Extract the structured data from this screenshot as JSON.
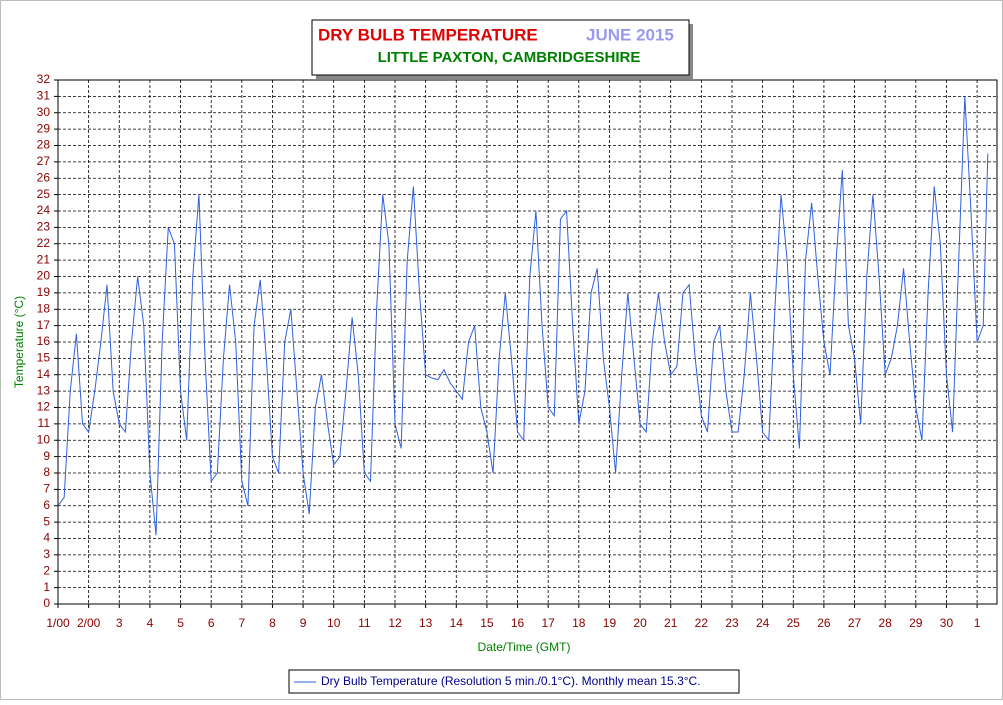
{
  "chart_data": {
    "type": "line",
    "title": "DRY BULB TEMPERATURE",
    "title_date": "JUNE 2015",
    "subtitle": "LITTLE PAXTON, CAMBRIDGESHIRE",
    "title_color": "#e00000",
    "title_date_color": "#9999ee",
    "subtitle_color": "#008000",
    "x_label": "Date/Time (GMT)",
    "y_label": "Temperature (°C)",
    "xlim": [
      0,
      30.65
    ],
    "ylim": [
      0,
      32
    ],
    "xticks": [
      {
        "value": 0,
        "label": "1/00"
      },
      {
        "value": 1,
        "label": "2/00"
      },
      {
        "value": 2,
        "label": "3"
      },
      {
        "value": 3,
        "label": "4"
      },
      {
        "value": 4,
        "label": "5"
      },
      {
        "value": 5,
        "label": "6"
      },
      {
        "value": 6,
        "label": "7"
      },
      {
        "value": 7,
        "label": "8"
      },
      {
        "value": 8,
        "label": "9"
      },
      {
        "value": 9,
        "label": "10"
      },
      {
        "value": 10,
        "label": "11"
      },
      {
        "value": 11,
        "label": "12"
      },
      {
        "value": 12,
        "label": "13"
      },
      {
        "value": 13,
        "label": "14"
      },
      {
        "value": 14,
        "label": "15"
      },
      {
        "value": 15,
        "label": "16"
      },
      {
        "value": 16,
        "label": "17"
      },
      {
        "value": 17,
        "label": "18"
      },
      {
        "value": 18,
        "label": "19"
      },
      {
        "value": 19,
        "label": "20"
      },
      {
        "value": 20,
        "label": "21"
      },
      {
        "value": 21,
        "label": "22"
      },
      {
        "value": 22,
        "label": "23"
      },
      {
        "value": 23,
        "label": "24"
      },
      {
        "value": 24,
        "label": "25"
      },
      {
        "value": 25,
        "label": "26"
      },
      {
        "value": 26,
        "label": "27"
      },
      {
        "value": 27,
        "label": "28"
      },
      {
        "value": 28,
        "label": "29"
      },
      {
        "value": 29,
        "label": "30"
      },
      {
        "value": 30,
        "label": "1"
      }
    ],
    "yticks": [
      0,
      1,
      2,
      3,
      4,
      5,
      6,
      7,
      8,
      9,
      10,
      11,
      12,
      13,
      14,
      15,
      16,
      17,
      18,
      19,
      20,
      21,
      22,
      23,
      24,
      25,
      26,
      27,
      28,
      29,
      30,
      31,
      32
    ],
    "grid": true,
    "x": [
      0,
      0.2,
      0.4,
      0.6,
      0.8,
      1,
      1.2,
      1.4,
      1.6,
      1.8,
      2,
      2.2,
      2.4,
      2.6,
      2.8,
      3,
      3.2,
      3.4,
      3.6,
      3.8,
      4,
      4.2,
      4.4,
      4.6,
      4.8,
      5,
      5.2,
      5.4,
      5.6,
      5.8,
      6,
      6.2,
      6.4,
      6.6,
      6.8,
      7,
      7.2,
      7.4,
      7.6,
      7.8,
      8,
      8.2,
      8.4,
      8.6,
      8.8,
      9,
      9.2,
      9.4,
      9.6,
      9.8,
      10,
      10.2,
      10.4,
      10.6,
      10.8,
      11,
      11.2,
      11.4,
      11.6,
      11.8,
      12,
      12.2,
      12.4,
      12.6,
      12.8,
      13,
      13.2,
      13.4,
      13.6,
      13.8,
      14,
      14.2,
      14.4,
      14.6,
      14.8,
      15,
      15.2,
      15.4,
      15.6,
      15.8,
      16,
      16.2,
      16.4,
      16.6,
      16.8,
      17,
      17.2,
      17.4,
      17.6,
      17.8,
      18,
      18.2,
      18.4,
      18.6,
      18.8,
      19,
      19.2,
      19.4,
      19.6,
      19.8,
      20,
      20.2,
      20.4,
      20.6,
      20.8,
      21,
      21.2,
      21.4,
      21.6,
      21.8,
      22,
      22.2,
      22.4,
      22.6,
      22.8,
      23,
      23.2,
      23.4,
      23.6,
      23.8,
      24,
      24.2,
      24.4,
      24.6,
      24.8,
      25,
      25.2,
      25.4,
      25.6,
      25.8,
      26,
      26.2,
      26.4,
      26.6,
      26.8,
      27,
      27.2,
      27.4,
      27.6,
      27.8,
      28,
      28.2,
      28.4,
      28.6,
      28.8,
      29,
      29.2,
      29.4,
      29.6,
      29.8,
      30,
      30.2,
      30.35
    ],
    "series": [
      {
        "name": "Dry Bulb Temperature (Resolution 5 min./0.1°C). Monthly mean 15.3°C.",
        "color": "#3060e0",
        "values": [
          6,
          6.5,
          13,
          16.5,
          11,
          10.5,
          13,
          16,
          19.5,
          13,
          11,
          10.5,
          16,
          20,
          17,
          8,
          4.2,
          16,
          23,
          22,
          13,
          10,
          20,
          25,
          15,
          7.5,
          8,
          15,
          19.5,
          16,
          7.5,
          6,
          17,
          19.8,
          15,
          9,
          8,
          16,
          18,
          13,
          8,
          5.5,
          12,
          14,
          11,
          8.5,
          9,
          13,
          17.5,
          14,
          8,
          7.5,
          18,
          25,
          22,
          11,
          9.5,
          21,
          25.5,
          19,
          14,
          13.8,
          13.7,
          14.3,
          13.5,
          13,
          12.5,
          16,
          17,
          12,
          10.5,
          8,
          15,
          19,
          15,
          10.5,
          10,
          20,
          24,
          17,
          12,
          11.5,
          23.5,
          24,
          17,
          11,
          13,
          19,
          20.5,
          15,
          12,
          8,
          14,
          19,
          15,
          11,
          10.5,
          16,
          19,
          16,
          14,
          14.5,
          19,
          19.5,
          15,
          11.5,
          10.5,
          16,
          17,
          13,
          10.5,
          10.5,
          14,
          19,
          15,
          10.5,
          10,
          18,
          25,
          21,
          14,
          9.5,
          21,
          24.5,
          20,
          16,
          14,
          21,
          26.5,
          17,
          15,
          11,
          20,
          25,
          20,
          14,
          15,
          17,
          20.5,
          16,
          12,
          10,
          19,
          25.5,
          22,
          14,
          10.5,
          21,
          31,
          24,
          16,
          17,
          27.5
        ]
      }
    ]
  }
}
